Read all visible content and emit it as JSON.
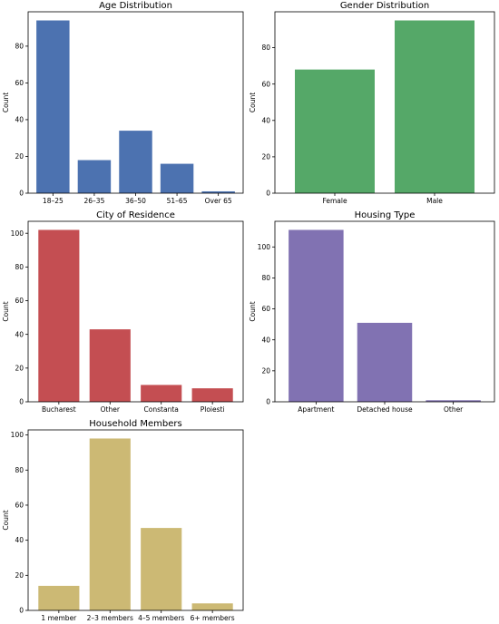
{
  "chart_data": [
    {
      "type": "bar",
      "title": "Age Distribution",
      "ylabel": "Count",
      "xlabel": "",
      "categories": [
        "18–25",
        "26–35",
        "36–50",
        "51–65",
        "Over 65"
      ],
      "values": [
        94,
        18,
        34,
        16,
        1
      ],
      "ylim": [
        0,
        98.7
      ],
      "yticks": [
        0,
        20,
        40,
        60,
        80
      ],
      "color": "#4c72b0",
      "grid": false
    },
    {
      "type": "bar",
      "title": "Gender Distribution",
      "ylabel": "Count",
      "xlabel": "",
      "categories": [
        "Female",
        "Male"
      ],
      "values": [
        68,
        95
      ],
      "ylim": [
        0,
        99.75
      ],
      "yticks": [
        0,
        20,
        40,
        60,
        80
      ],
      "color": "#55a868",
      "grid": false
    },
    {
      "type": "bar",
      "title": "City of Residence",
      "ylabel": "Count",
      "xlabel": "",
      "categories": [
        "Bucharest",
        "Other",
        "Constanta",
        "Ploiesti"
      ],
      "values": [
        102,
        43,
        10,
        8
      ],
      "ylim": [
        0,
        107.1
      ],
      "yticks": [
        0,
        20,
        40,
        60,
        80,
        100
      ],
      "color": "#c44e52",
      "grid": false
    },
    {
      "type": "bar",
      "title": "Housing Type",
      "ylabel": "Count",
      "xlabel": "",
      "categories": [
        "Apartment",
        "Detached house",
        "Other"
      ],
      "values": [
        111,
        51,
        1
      ],
      "ylim": [
        0,
        116.55
      ],
      "yticks": [
        0,
        20,
        40,
        60,
        80,
        100
      ],
      "color": "#8172b2",
      "grid": false
    },
    {
      "type": "bar",
      "title": "Household Members",
      "ylabel": "Count",
      "xlabel": "",
      "categories": [
        "1 member",
        "2–3 members",
        "4–5 members",
        "6+ members"
      ],
      "values": [
        14,
        98,
        47,
        4
      ],
      "ylim": [
        0,
        102.9
      ],
      "yticks": [
        0,
        20,
        40,
        60,
        80,
        100
      ],
      "color": "#ccb974",
      "grid": false
    }
  ]
}
